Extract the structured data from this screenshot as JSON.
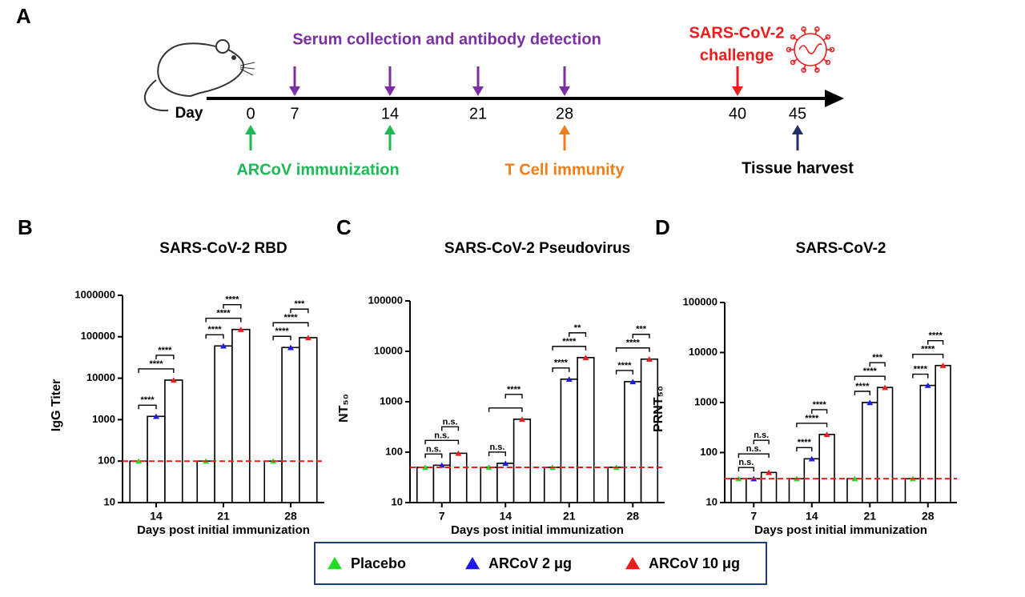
{
  "panel_a": {
    "label": "A",
    "day_label": "Day",
    "days": [
      "0",
      "7",
      "14",
      "21",
      "28",
      "40",
      "45"
    ],
    "serum_label": "Serum collection and antibody detection",
    "challenge_label": [
      "SARS-CoV-2",
      "challenge"
    ],
    "immunization_label": "ARCoV immunization",
    "tcell_label": "T Cell immunity",
    "harvest_label": "Tissue harvest"
  },
  "chart_data": [
    {
      "type": "bar",
      "panel": "B",
      "title": "SARS-CoV-2 RBD",
      "y_label": "IgG Titer",
      "x_label": "Days post  initial immunization",
      "log_scale": true,
      "ylim": [
        10,
        1000000
      ],
      "yticks": [
        10,
        100,
        1000,
        10000,
        100000,
        1000000
      ],
      "categories": [
        "14",
        "21",
        "28"
      ],
      "series": [
        {
          "name": "Placebo",
          "color": "#22dd22",
          "values": [
            100,
            100,
            100
          ]
        },
        {
          "name": "ARCoV 2 μg",
          "color": "#1a1aee",
          "values": [
            1200,
            60000,
            55000
          ]
        },
        {
          "name": "ARCoV 10 μg",
          "color": "#ee1c1c",
          "values": [
            9000,
            150000,
            95000
          ]
        }
      ],
      "reference_line": 100,
      "reference_color": "#e8201c",
      "significance": [
        [
          "****",
          "****",
          "****"
        ],
        [
          "****",
          "****",
          "****"
        ],
        [
          "****",
          "****",
          "***"
        ]
      ]
    },
    {
      "type": "bar",
      "panel": "C",
      "title": "SARS-CoV-2 Pseudovirus",
      "y_label": "NT₅₀",
      "x_label": "Days post initial immunization",
      "log_scale": true,
      "ylim": [
        10,
        100000
      ],
      "yticks": [
        10,
        100,
        1000,
        10000,
        100000
      ],
      "categories": [
        "7",
        "14",
        "21",
        "28"
      ],
      "series": [
        {
          "name": "Placebo",
          "color": "#22dd22",
          "values": [
            50,
            50,
            50,
            50
          ]
        },
        {
          "name": "ARCoV 2 μg",
          "color": "#1a1aee",
          "values": [
            55,
            60,
            2800,
            2500
          ]
        },
        {
          "name": "ARCoV 10 μg",
          "color": "#ee1c1c",
          "values": [
            95,
            450,
            7500,
            7000
          ]
        }
      ],
      "reference_line": 50,
      "reference_color": "#e8201c",
      "significance": [
        [
          "n.s.",
          "n.s.",
          "n.s."
        ],
        [
          "n.s.",
          null,
          "****"
        ],
        [
          "****",
          "****",
          "**"
        ],
        [
          "****",
          "****",
          "***"
        ]
      ]
    },
    {
      "type": "bar",
      "panel": "D",
      "title": "SARS-CoV-2",
      "y_label": "PRNT₅₀",
      "x_label": "Days post initial immunization",
      "log_scale": true,
      "ylim": [
        10,
        100000
      ],
      "yticks": [
        10,
        100,
        1000,
        10000,
        100000
      ],
      "categories": [
        "7",
        "14",
        "21",
        "28"
      ],
      "series": [
        {
          "name": "Placebo",
          "color": "#22dd22",
          "values": [
            30,
            30,
            30,
            30
          ]
        },
        {
          "name": "ARCoV 2 μg",
          "color": "#1a1aee",
          "values": [
            30,
            75,
            1000,
            2200
          ]
        },
        {
          "name": "ARCoV 10 μg",
          "color": "#ee1c1c",
          "values": [
            40,
            230,
            2000,
            5500
          ]
        }
      ],
      "reference_line": 30,
      "reference_color": "#e8201c",
      "significance": [
        [
          "n.s.",
          "n.s.",
          "n.s."
        ],
        [
          "****",
          "****",
          "****"
        ],
        [
          "****",
          "****",
          "***"
        ],
        [
          "****",
          "****",
          "****"
        ]
      ]
    }
  ],
  "legend_position": "bottom"
}
